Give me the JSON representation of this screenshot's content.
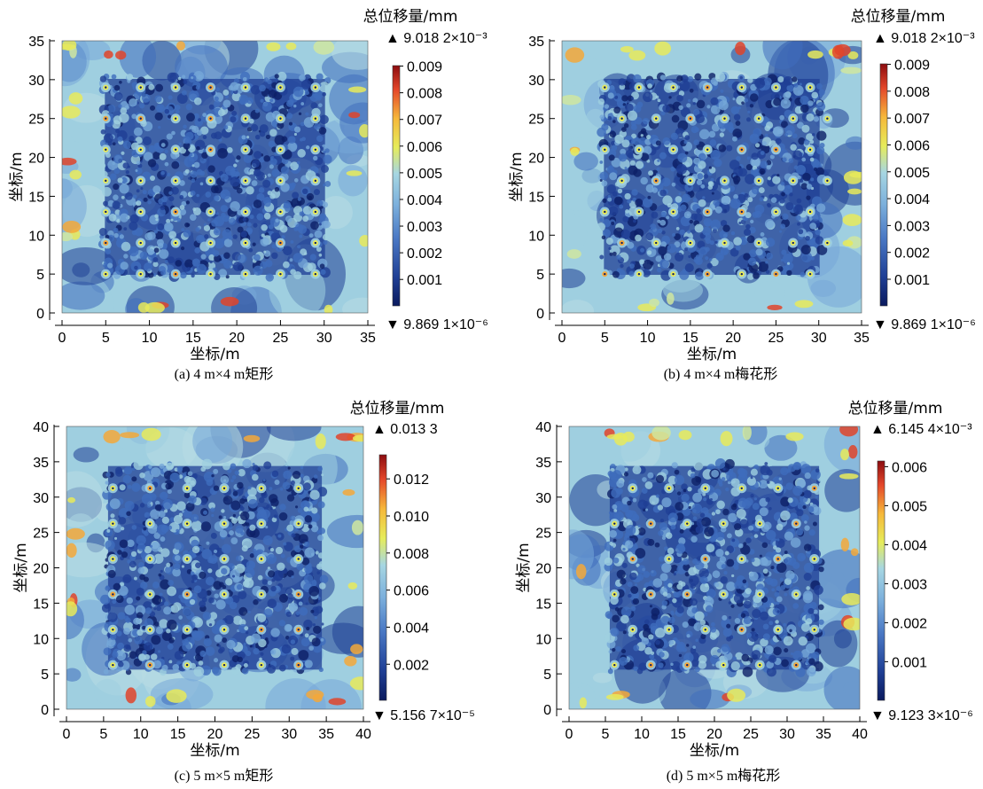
{
  "chart_data": [
    {
      "type": "heatmap",
      "caption": "(a) 4 m×4 m矩形",
      "xlabel": "坐标/m",
      "ylabel": "坐标/m",
      "xlim": [
        0,
        35
      ],
      "ylim": [
        0,
        35
      ],
      "xticks": [
        "0",
        "5",
        "10",
        "15",
        "20",
        "25",
        "30",
        "35"
      ],
      "yticks": [
        "0",
        "5",
        "10",
        "15",
        "20",
        "25",
        "30",
        "35"
      ],
      "colorbar": {
        "title": "总位移量/mm",
        "max_label": "▲ 9.018 2×10⁻³",
        "min_label": "▼ 9.869 1×10⁻⁶",
        "ticks": [
          "0.001",
          "0.002",
          "0.003",
          "0.004",
          "0.005",
          "0.006",
          "0.007",
          "0.008",
          "0.009"
        ],
        "range": [
          9.8691e-06,
          0.0090182
        ]
      },
      "pattern": "rectangular",
      "spacing": 4
    },
    {
      "type": "heatmap",
      "caption": "(b) 4 m×4 m梅花形",
      "xlabel": "坐标/m",
      "ylabel": "坐标/m",
      "xlim": [
        0,
        35
      ],
      "ylim": [
        0,
        35
      ],
      "xticks": [
        "0",
        "5",
        "10",
        "15",
        "20",
        "25",
        "30",
        "35"
      ],
      "yticks": [
        "0",
        "5",
        "10",
        "15",
        "20",
        "25",
        "30",
        "35"
      ],
      "colorbar": {
        "title": "总位移量/mm",
        "max_label": "▲ 9.018 2×10⁻³",
        "min_label": "▼ 9.869 1×10⁻⁶",
        "ticks": [
          "0.001",
          "0.002",
          "0.003",
          "0.004",
          "0.005",
          "0.006",
          "0.007",
          "0.008",
          "0.009"
        ],
        "range": [
          9.8691e-06,
          0.0090182
        ]
      },
      "pattern": "quincunx",
      "spacing": 4
    },
    {
      "type": "heatmap",
      "caption": "(c) 5 m×5 m矩形",
      "xlabel": "坐标/m",
      "ylabel": "坐标/m",
      "xlim": [
        0,
        40
      ],
      "ylim": [
        0,
        40
      ],
      "xticks": [
        "0",
        "5",
        "10",
        "15",
        "20",
        "25",
        "30",
        "35",
        "40"
      ],
      "yticks": [
        "0",
        "5",
        "10",
        "15",
        "20",
        "25",
        "30",
        "35",
        "40"
      ],
      "colorbar": {
        "title": "总位移量/mm",
        "max_label": "▲ 0.013 3",
        "min_label": "▼ 5.156 7×10⁻⁵",
        "ticks": [
          "0.002",
          "0.004",
          "0.006",
          "0.008",
          "0.010",
          "0.012"
        ],
        "range": [
          5.1567e-05,
          0.0133
        ]
      },
      "pattern": "rectangular",
      "spacing": 5
    },
    {
      "type": "heatmap",
      "caption": "(d) 5 m×5 m梅花形",
      "xlabel": "坐标/m",
      "ylabel": "坐标/m",
      "xlim": [
        0,
        40
      ],
      "ylim": [
        0,
        40
      ],
      "xticks": [
        "0",
        "5",
        "10",
        "15",
        "20",
        "25",
        "30",
        "35",
        "40"
      ],
      "yticks": [
        "0",
        "5",
        "10",
        "15",
        "20",
        "25",
        "30",
        "35",
        "40"
      ],
      "colorbar": {
        "title": "总位移量/mm",
        "max_label": "▲ 6.145 4×10⁻³",
        "min_label": "▼ 9.123 3×10⁻⁶",
        "ticks": [
          "0.001",
          "0.002",
          "0.003",
          "0.004",
          "0.005",
          "0.006"
        ],
        "range": [
          9.1233e-06,
          0.0061454
        ]
      },
      "pattern": "quincunx",
      "spacing": 5
    }
  ]
}
